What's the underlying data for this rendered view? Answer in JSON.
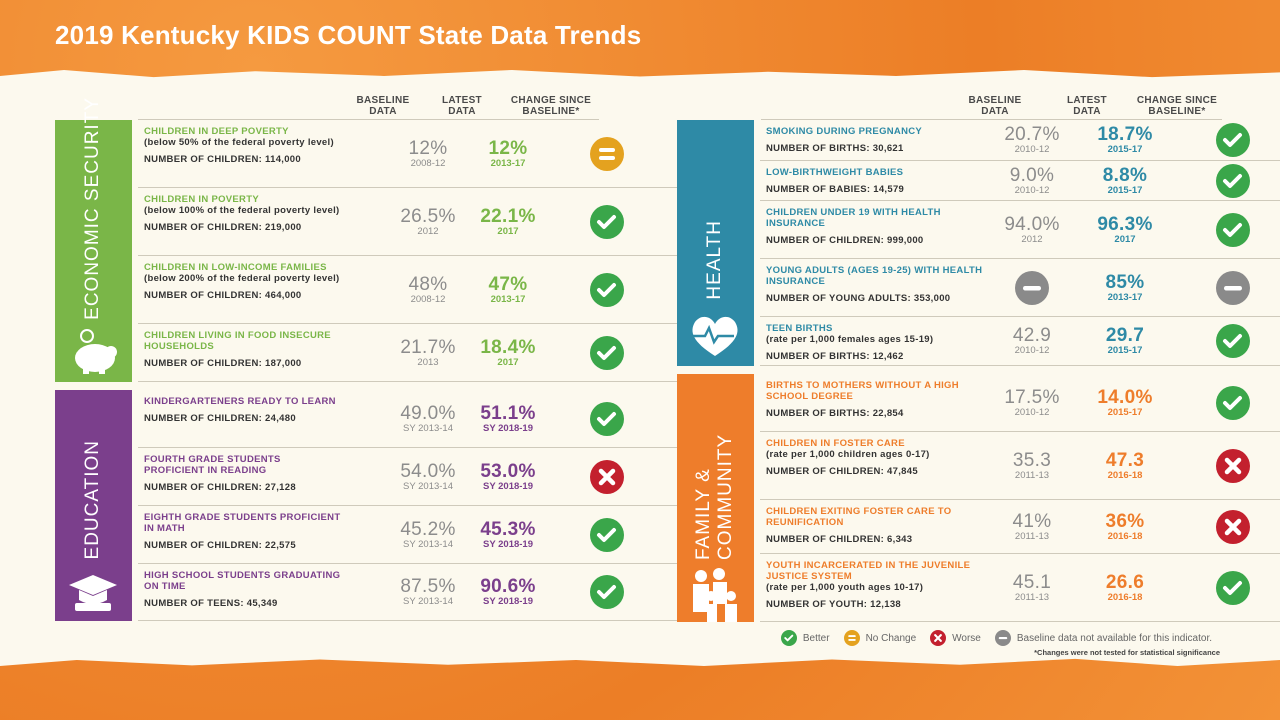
{
  "title": "2019 Kentucky KIDS COUNT State Data Trends",
  "headers": {
    "baseline": "BASELINE DATA",
    "latest": "LATEST DATA",
    "change": "CHANGE SINCE BASELINE*"
  },
  "colors": {
    "economic": "#7ab648",
    "education": "#7b3f8c",
    "health": "#2e8aa6",
    "family": "#ee7d2b",
    "better": "#3aa64a",
    "no_change": "#e4a21f",
    "worse": "#c3202e",
    "na": "#8a8a8a"
  },
  "sections": [
    {
      "id": "economic",
      "name": "ECONOMIC SECURITY",
      "icon": "piggy-bank-icon",
      "color": "#7ab648",
      "rows": [
        {
          "title": "CHILDREN IN DEEP POVERTY",
          "sub": "(below 50% of the federal poverty level)",
          "count": "NUMBER OF CHILDREN: 114,000",
          "baseline": "12%",
          "baseline_year": "2008-12",
          "latest": "12%",
          "latest_year": "2013-17",
          "change": "no_change"
        },
        {
          "title": "CHILDREN IN POVERTY",
          "sub": "(below 100% of the federal poverty level)",
          "count": "NUMBER OF CHILDREN: 219,000",
          "baseline": "26.5%",
          "baseline_year": "2012",
          "latest": "22.1%",
          "latest_year": "2017",
          "change": "better"
        },
        {
          "title": "CHILDREN IN LOW-INCOME FAMILIES",
          "sub": "(below 200% of the federal poverty level)",
          "count": "NUMBER OF CHILDREN: 464,000",
          "baseline": "48%",
          "baseline_year": "2008-12",
          "latest": "47%",
          "latest_year": "2013-17",
          "change": "better"
        },
        {
          "title": "CHILDREN LIVING IN FOOD INSECURE HOUSEHOLDS",
          "sub": "",
          "count": "NUMBER OF CHILDREN: 187,000",
          "baseline": "21.7%",
          "baseline_year": "2013",
          "latest": "18.4%",
          "latest_year": "2017",
          "change": "better"
        }
      ]
    },
    {
      "id": "education",
      "name": "EDUCATION",
      "icon": "graduation-cap-icon",
      "color": "#7b3f8c",
      "rows": [
        {
          "title": "KINDERGARTENERS READY TO LEARN",
          "sub": "",
          "count": "NUMBER OF CHILDREN: 24,480",
          "baseline": "49.0%",
          "baseline_year": "SY 2013-14",
          "latest": "51.1%",
          "latest_year": "SY 2018-19",
          "change": "better"
        },
        {
          "title": "FOURTH GRADE STUDENTS PROFICIENT IN READING",
          "sub": "",
          "count": "NUMBER OF CHILDREN: 27,128",
          "baseline": "54.0%",
          "baseline_year": "SY 2013-14",
          "latest": "53.0%",
          "latest_year": "SY 2018-19",
          "change": "worse"
        },
        {
          "title": "EIGHTH GRADE STUDENTS PROFICIENT IN MATH",
          "sub": "",
          "count": "NUMBER OF CHILDREN: 22,575",
          "baseline": "45.2%",
          "baseline_year": "SY 2013-14",
          "latest": "45.3%",
          "latest_year": "SY 2018-19",
          "change": "better"
        },
        {
          "title": "HIGH SCHOOL STUDENTS GRADUATING ON TIME",
          "sub": "",
          "count": "NUMBER OF TEENS: 45,349",
          "baseline": "87.5%",
          "baseline_year": "SY 2013-14",
          "latest": "90.6%",
          "latest_year": "SY 2018-19",
          "change": "better"
        }
      ]
    },
    {
      "id": "health",
      "name": "HEALTH",
      "icon": "heart-stethoscope-icon",
      "color": "#2e8aa6",
      "rows": [
        {
          "title": "SMOKING DURING PREGNANCY",
          "sub": "",
          "count": "NUMBER OF BIRTHS: 30,621",
          "baseline": "20.7%",
          "baseline_year": "2010-12",
          "latest": "18.7%",
          "latest_year": "2015-17",
          "change": "better"
        },
        {
          "title": "LOW-BIRTHWEIGHT BABIES",
          "sub": "",
          "count": "NUMBER OF BABIES: 14,579",
          "baseline": "9.0%",
          "baseline_year": "2010-12",
          "latest": "8.8%",
          "latest_year": "2015-17",
          "change": "better"
        },
        {
          "title": "CHILDREN UNDER 19 WITH HEALTH INSURANCE",
          "sub": "",
          "count": "NUMBER OF CHILDREN: 999,000",
          "baseline": "94.0%",
          "baseline_year": "2012",
          "latest": "96.3%",
          "latest_year": "2017",
          "change": "better"
        },
        {
          "title": "YOUNG ADULTS (AGES 19-25) WITH HEALTH INSURANCE",
          "sub": "",
          "count": "NUMBER OF YOUNG ADULTS: 353,000",
          "baseline": "",
          "baseline_year": "",
          "baseline_na": true,
          "latest": "85%",
          "latest_year": "2013-17",
          "change": "na"
        },
        {
          "title": "TEEN BIRTHS",
          "sub": "(rate per 1,000 females ages 15-19)",
          "count": "NUMBER OF BIRTHS: 12,462",
          "baseline": "42.9",
          "baseline_year": "2010-12",
          "latest": "29.7",
          "latest_year": "2015-17",
          "change": "better"
        }
      ]
    },
    {
      "id": "family",
      "name": "FAMILY & COMMUNITY",
      "icon": "family-icon",
      "color": "#ee7d2b",
      "rows": [
        {
          "title": "BIRTHS TO MOTHERS WITHOUT A HIGH SCHOOL DEGREE",
          "sub": "",
          "count": "NUMBER OF BIRTHS: 22,854",
          "baseline": "17.5%",
          "baseline_year": "2010-12",
          "latest": "14.0%",
          "latest_year": "2015-17",
          "change": "better"
        },
        {
          "title": "CHILDREN IN FOSTER CARE",
          "sub": "(rate per 1,000 children ages 0-17)",
          "count": "NUMBER OF CHILDREN: 47,845",
          "baseline": "35.3",
          "baseline_year": "2011-13",
          "latest": "47.3",
          "latest_year": "2016-18",
          "change": "worse"
        },
        {
          "title": "CHILDREN EXITING FOSTER CARE TO REUNIFICATION",
          "sub": "",
          "count": "NUMBER OF CHILDREN: 6,343",
          "baseline": "41%",
          "baseline_year": "2011-13",
          "latest": "36%",
          "latest_year": "2016-18",
          "change": "worse"
        },
        {
          "title": "YOUTH INCARCERATED IN THE JUVENILE JUSTICE SYSTEM",
          "sub": "(rate per 1,000 youth ages 10-17)",
          "count": "NUMBER OF YOUTH: 12,138",
          "baseline": "45.1",
          "baseline_year": "2011-13",
          "latest": "26.6",
          "latest_year": "2016-18",
          "change": "better"
        }
      ]
    }
  ],
  "legend": [
    {
      "type": "better",
      "label": "Better"
    },
    {
      "type": "no_change",
      "label": "No Change"
    },
    {
      "type": "worse",
      "label": "Worse"
    },
    {
      "type": "na",
      "label": "Baseline data not available for this indicator."
    }
  ],
  "footnote": "*Changes were not tested for statistical significance"
}
